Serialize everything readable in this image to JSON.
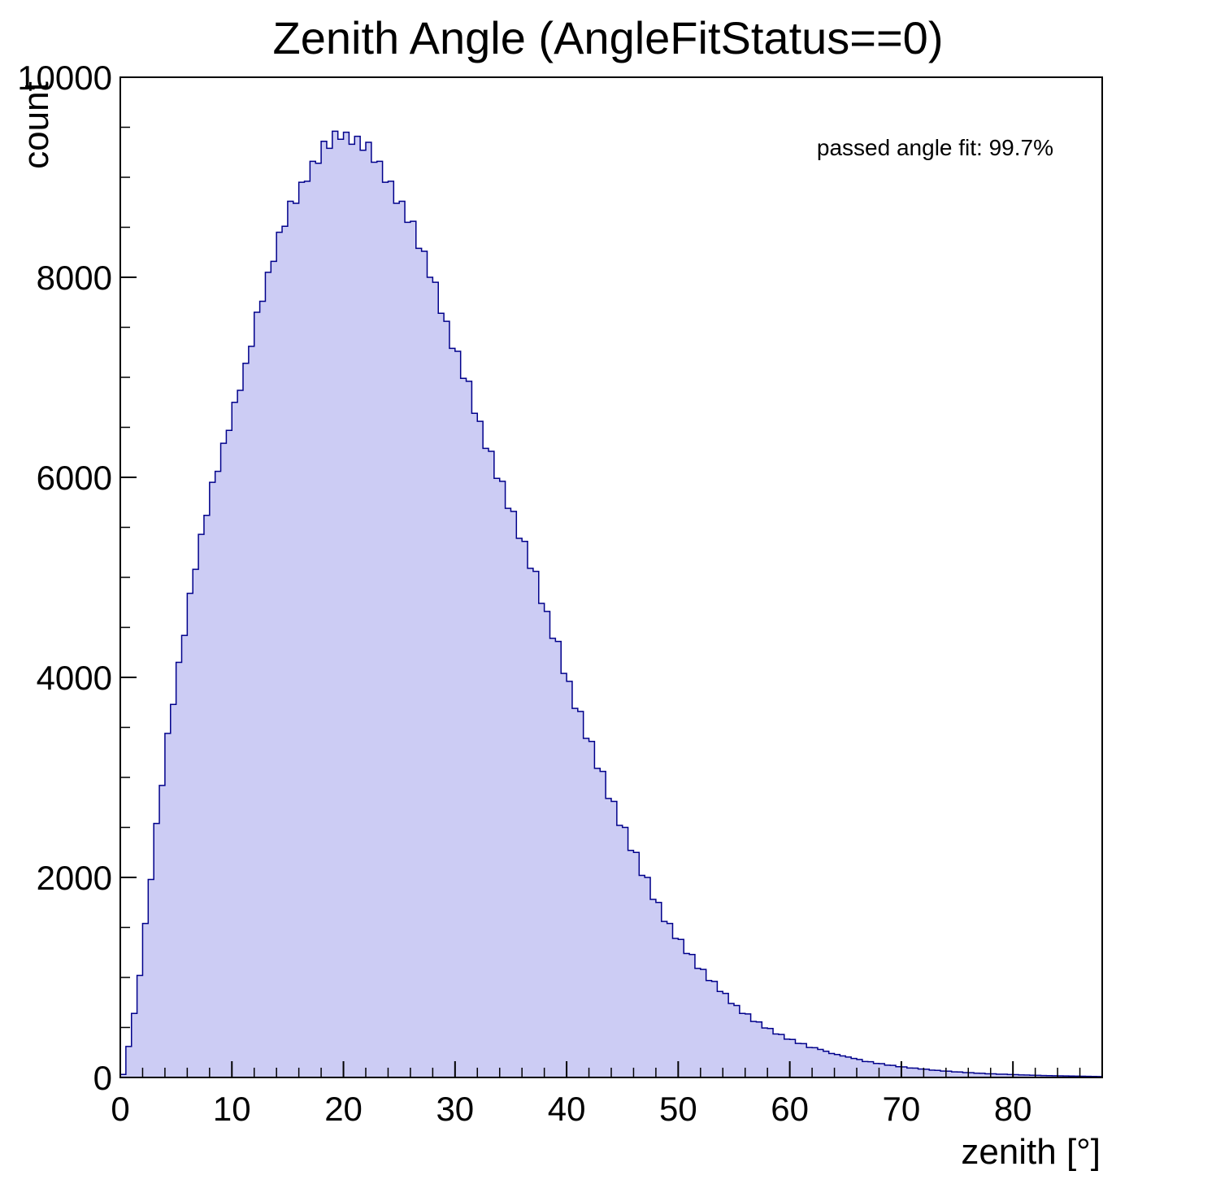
{
  "colors": {
    "histogram_fill": "#ccccf4",
    "histogram_line": "#00008b",
    "axis": "#000000",
    "background": "#ffffff"
  },
  "chart_data": {
    "type": "bar",
    "title": "Zenith Angle (AngleFitStatus==0)",
    "xlabel": "zenith [°]",
    "ylabel": "count",
    "annotation": "passed angle fit: 99.7%",
    "xlim": [
      0,
      88
    ],
    "ylim": [
      0,
      10000
    ],
    "x_ticks": [
      0,
      10,
      20,
      30,
      40,
      50,
      60,
      70,
      80
    ],
    "x_minor_step": 2,
    "y_ticks": [
      0,
      2000,
      4000,
      6000,
      8000,
      10000
    ],
    "y_minor_step": 500,
    "bin_start": 0,
    "bin_width": 0.5,
    "values": [
      30,
      310,
      640,
      1020,
      1540,
      1980,
      2540,
      2920,
      3440,
      3730,
      4150,
      4420,
      4840,
      5080,
      5430,
      5620,
      5950,
      6060,
      6340,
      6470,
      6750,
      6870,
      7140,
      7310,
      7650,
      7760,
      8050,
      8160,
      8450,
      8510,
      8760,
      8740,
      8950,
      8960,
      9160,
      9140,
      9360,
      9290,
      9460,
      9380,
      9450,
      9330,
      9410,
      9270,
      9350,
      9150,
      9160,
      8950,
      8960,
      8740,
      8760,
      8550,
      8560,
      8290,
      8260,
      8000,
      7950,
      7640,
      7560,
      7290,
      7260,
      6990,
      6960,
      6640,
      6560,
      6290,
      6260,
      5990,
      5960,
      5690,
      5660,
      5390,
      5360,
      5090,
      5060,
      4740,
      4660,
      4390,
      4360,
      4040,
      3960,
      3690,
      3660,
      3390,
      3360,
      3090,
      3060,
      2790,
      2760,
      2520,
      2500,
      2270,
      2250,
      2020,
      2000,
      1780,
      1750,
      1560,
      1540,
      1390,
      1380,
      1240,
      1230,
      1090,
      1080,
      970,
      960,
      860,
      840,
      740,
      720,
      640,
      635,
      560,
      555,
      495,
      490,
      435,
      430,
      383,
      380,
      340,
      338,
      300,
      298,
      280,
      262,
      240,
      230,
      215,
      204,
      190,
      180,
      160,
      158,
      140,
      138,
      123,
      121,
      108,
      106,
      95,
      93,
      84,
      82,
      73,
      71,
      64,
      63,
      56,
      55,
      49,
      48,
      43,
      42,
      37,
      37,
      33,
      32,
      29,
      28,
      25,
      24,
      22,
      21,
      19,
      18,
      17,
      16,
      15,
      14,
      13,
      12,
      11,
      10,
      9
    ]
  }
}
